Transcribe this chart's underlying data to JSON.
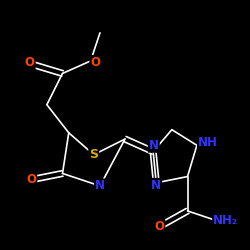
{
  "background_color": "#000000",
  "bond_color": "#ffffff",
  "atom_colors": {
    "S": "#ddaa00",
    "N": "#3333ff",
    "O": "#ff4400",
    "C": "#ffffff",
    "H": "#ffffff"
  },
  "figsize": [
    2.5,
    2.5
  ],
  "dpi": 100,
  "lw": 1.2,
  "fs": 8.5
}
